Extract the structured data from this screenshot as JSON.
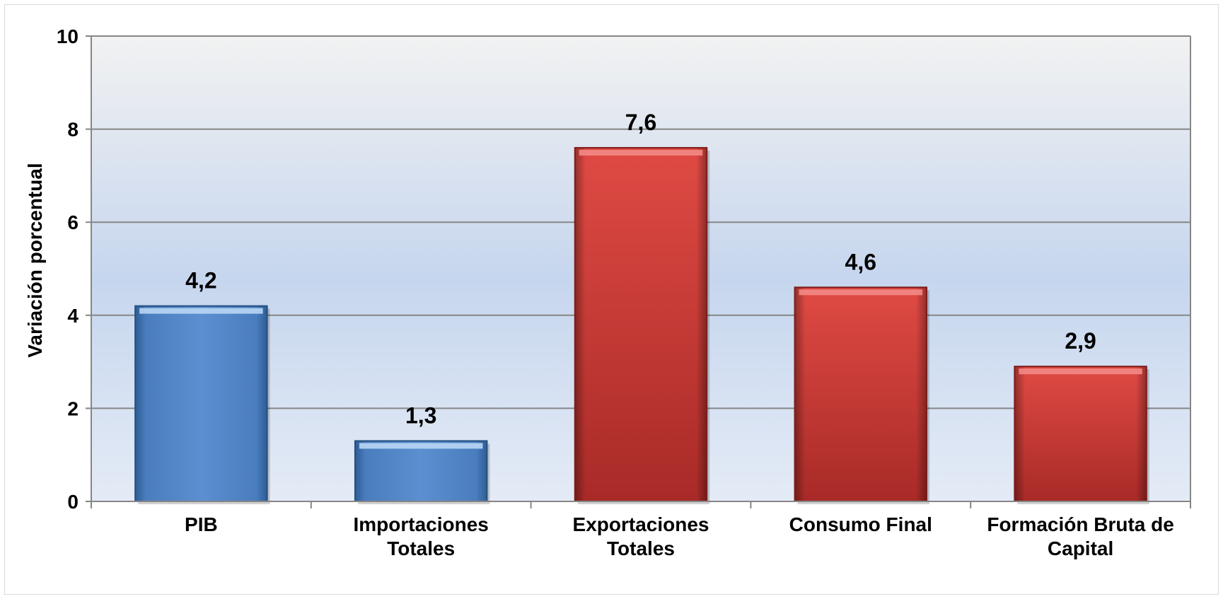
{
  "chart_data": {
    "type": "bar",
    "title": "",
    "xlabel": "",
    "ylabel": "Variación porcentual",
    "ylim": [
      0,
      10
    ],
    "yticks": [
      0,
      2,
      4,
      6,
      8,
      10
    ],
    "ytick_labels": [
      "0",
      "2",
      "4",
      "6",
      "8",
      "10"
    ],
    "grid": true,
    "legend": "none",
    "categories": [
      [
        "PIB"
      ],
      [
        "Importaciones",
        "Totales"
      ],
      [
        "Exportaciones",
        "Totales"
      ],
      [
        "Consumo Final"
      ],
      [
        "Formación Bruta de",
        "Capital"
      ]
    ],
    "values": [
      4.2,
      1.3,
      7.6,
      4.6,
      2.9
    ],
    "data_labels": [
      "4,2",
      "1,3",
      "7,6",
      "4,6",
      "2,9"
    ],
    "bar_colors": [
      "#4f81bd",
      "#4f81bd",
      "#c0392b",
      "#c0392b",
      "#c0392b"
    ],
    "colors": {
      "blue_light": "#8db8ea",
      "blue_mid": "#5b8fd0",
      "blue_dark": "#2e5d96",
      "red_light": "#e8554f",
      "red_mid": "#d23a35",
      "red_dark": "#9b2525",
      "plot_bg_top": "#f2f2f2",
      "plot_bg_mid": "#c6d6ee",
      "plot_bg_bottom": "#e4ebf6",
      "gridline": "#868686",
      "axis": "#868686"
    }
  }
}
